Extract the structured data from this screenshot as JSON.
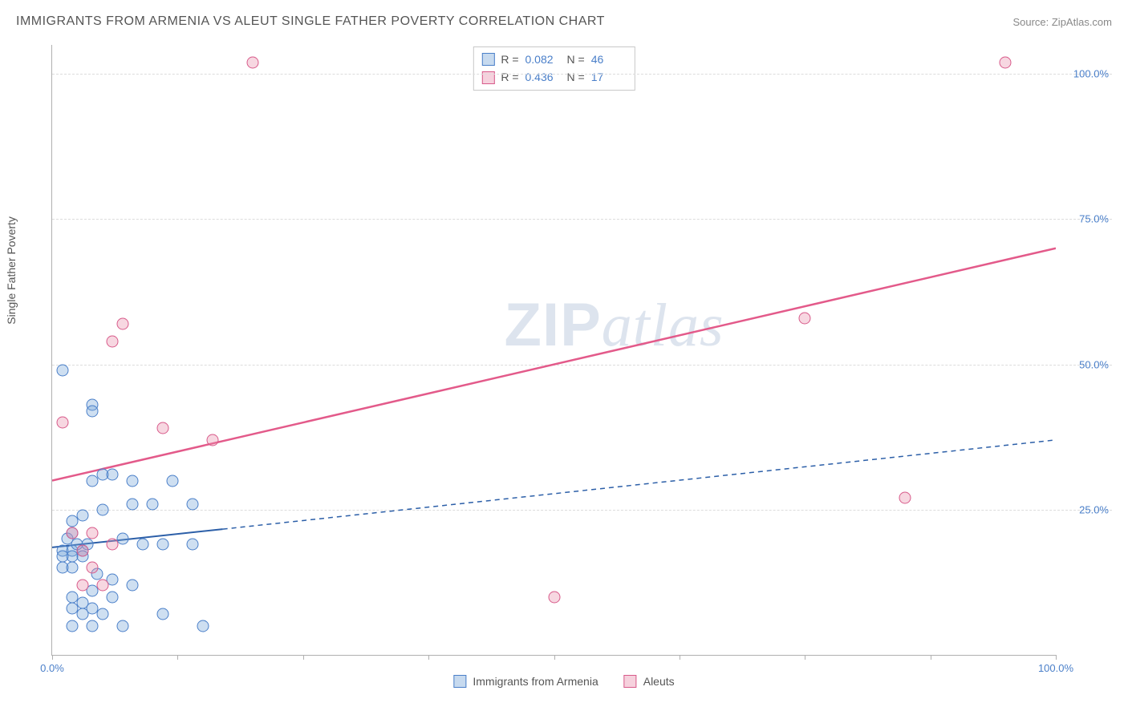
{
  "header": {
    "title": "IMMIGRANTS FROM ARMENIA VS ALEUT SINGLE FATHER POVERTY CORRELATION CHART",
    "source_prefix": "Source: ",
    "source_name": "ZipAtlas.com"
  },
  "watermark": {
    "zip": "ZIP",
    "atlas": "atlas"
  },
  "chart": {
    "type": "scatter",
    "y_axis_label": "Single Father Poverty",
    "xlim": [
      0,
      100
    ],
    "ylim": [
      0,
      105
    ],
    "x_ticks": [
      0,
      12.5,
      25,
      37.5,
      50,
      62.5,
      75,
      87.5,
      100
    ],
    "x_tick_labels": {
      "0": "0.0%",
      "100": "100.0%"
    },
    "y_gridlines": [
      25,
      50,
      75,
      100
    ],
    "y_tick_labels": [
      "25.0%",
      "50.0%",
      "75.0%",
      "100.0%"
    ],
    "grid_color": "#dcdcdc",
    "axis_color": "#b0b0b0",
    "tick_label_color": "#4a7fc9",
    "tick_label_fontsize": 13,
    "point_radius": 7.5,
    "background_color": "#ffffff",
    "series": [
      {
        "name": "Immigrants from Armenia",
        "color_fill": "rgba(116,162,214,0.35)",
        "color_stroke": "#4a7fc9",
        "legend_label": "Immigrants from Armenia",
        "stats": {
          "R": "0.082",
          "N": "46"
        },
        "trend": {
          "x1": 0,
          "y1": 18.5,
          "x2": 100,
          "y2": 37,
          "stroke": "#2c5fa8",
          "width": 2,
          "solid_until_x": 17
        },
        "points": [
          [
            1,
            49
          ],
          [
            4,
            43
          ],
          [
            4,
            42
          ],
          [
            1,
            18
          ],
          [
            2,
            18
          ],
          [
            3,
            18
          ],
          [
            2,
            17
          ],
          [
            3,
            17
          ],
          [
            1,
            17
          ],
          [
            2.5,
            19
          ],
          [
            3.5,
            19
          ],
          [
            1.5,
            20
          ],
          [
            2,
            21
          ],
          [
            5,
            31
          ],
          [
            6,
            31
          ],
          [
            8,
            30
          ],
          [
            4,
            30
          ],
          [
            12,
            30
          ],
          [
            8,
            26
          ],
          [
            10,
            26
          ],
          [
            14,
            26
          ],
          [
            5,
            25
          ],
          [
            3,
            24
          ],
          [
            2,
            23
          ],
          [
            7,
            20
          ],
          [
            9,
            19
          ],
          [
            11,
            19
          ],
          [
            14,
            19
          ],
          [
            1,
            15
          ],
          [
            2,
            15
          ],
          [
            4.5,
            14
          ],
          [
            6,
            13
          ],
          [
            4,
            11
          ],
          [
            8,
            12
          ],
          [
            2,
            10
          ],
          [
            3,
            9
          ],
          [
            4,
            8
          ],
          [
            2,
            8
          ],
          [
            3,
            7
          ],
          [
            5,
            7
          ],
          [
            2,
            5
          ],
          [
            4,
            5
          ],
          [
            7,
            5
          ],
          [
            11,
            7
          ],
          [
            15,
            5
          ],
          [
            6,
            10
          ]
        ]
      },
      {
        "name": "Aleuts",
        "color_fill": "rgba(233,140,170,0.35)",
        "color_stroke": "#d85a8a",
        "legend_label": "Aleuts",
        "stats": {
          "R": "0.436",
          "N": "17"
        },
        "trend": {
          "x1": 0,
          "y1": 30,
          "x2": 100,
          "y2": 70,
          "stroke": "#e35a8a",
          "width": 2.5,
          "solid_until_x": 100
        },
        "points": [
          [
            20,
            102
          ],
          [
            95,
            102
          ],
          [
            1,
            40
          ],
          [
            6,
            54
          ],
          [
            7,
            57
          ],
          [
            11,
            39
          ],
          [
            16,
            37
          ],
          [
            2,
            21
          ],
          [
            4,
            21
          ],
          [
            3,
            18
          ],
          [
            4,
            15
          ],
          [
            6,
            19
          ],
          [
            3,
            12
          ],
          [
            5,
            12
          ],
          [
            50,
            10
          ],
          [
            75,
            58
          ],
          [
            85,
            27
          ]
        ]
      }
    ],
    "stats_box": {
      "R_label": "R =",
      "N_label": "N ="
    }
  },
  "bottom_legend": [
    {
      "swatch": "blue",
      "label": "Immigrants from Armenia"
    },
    {
      "swatch": "pink",
      "label": "Aleuts"
    }
  ]
}
